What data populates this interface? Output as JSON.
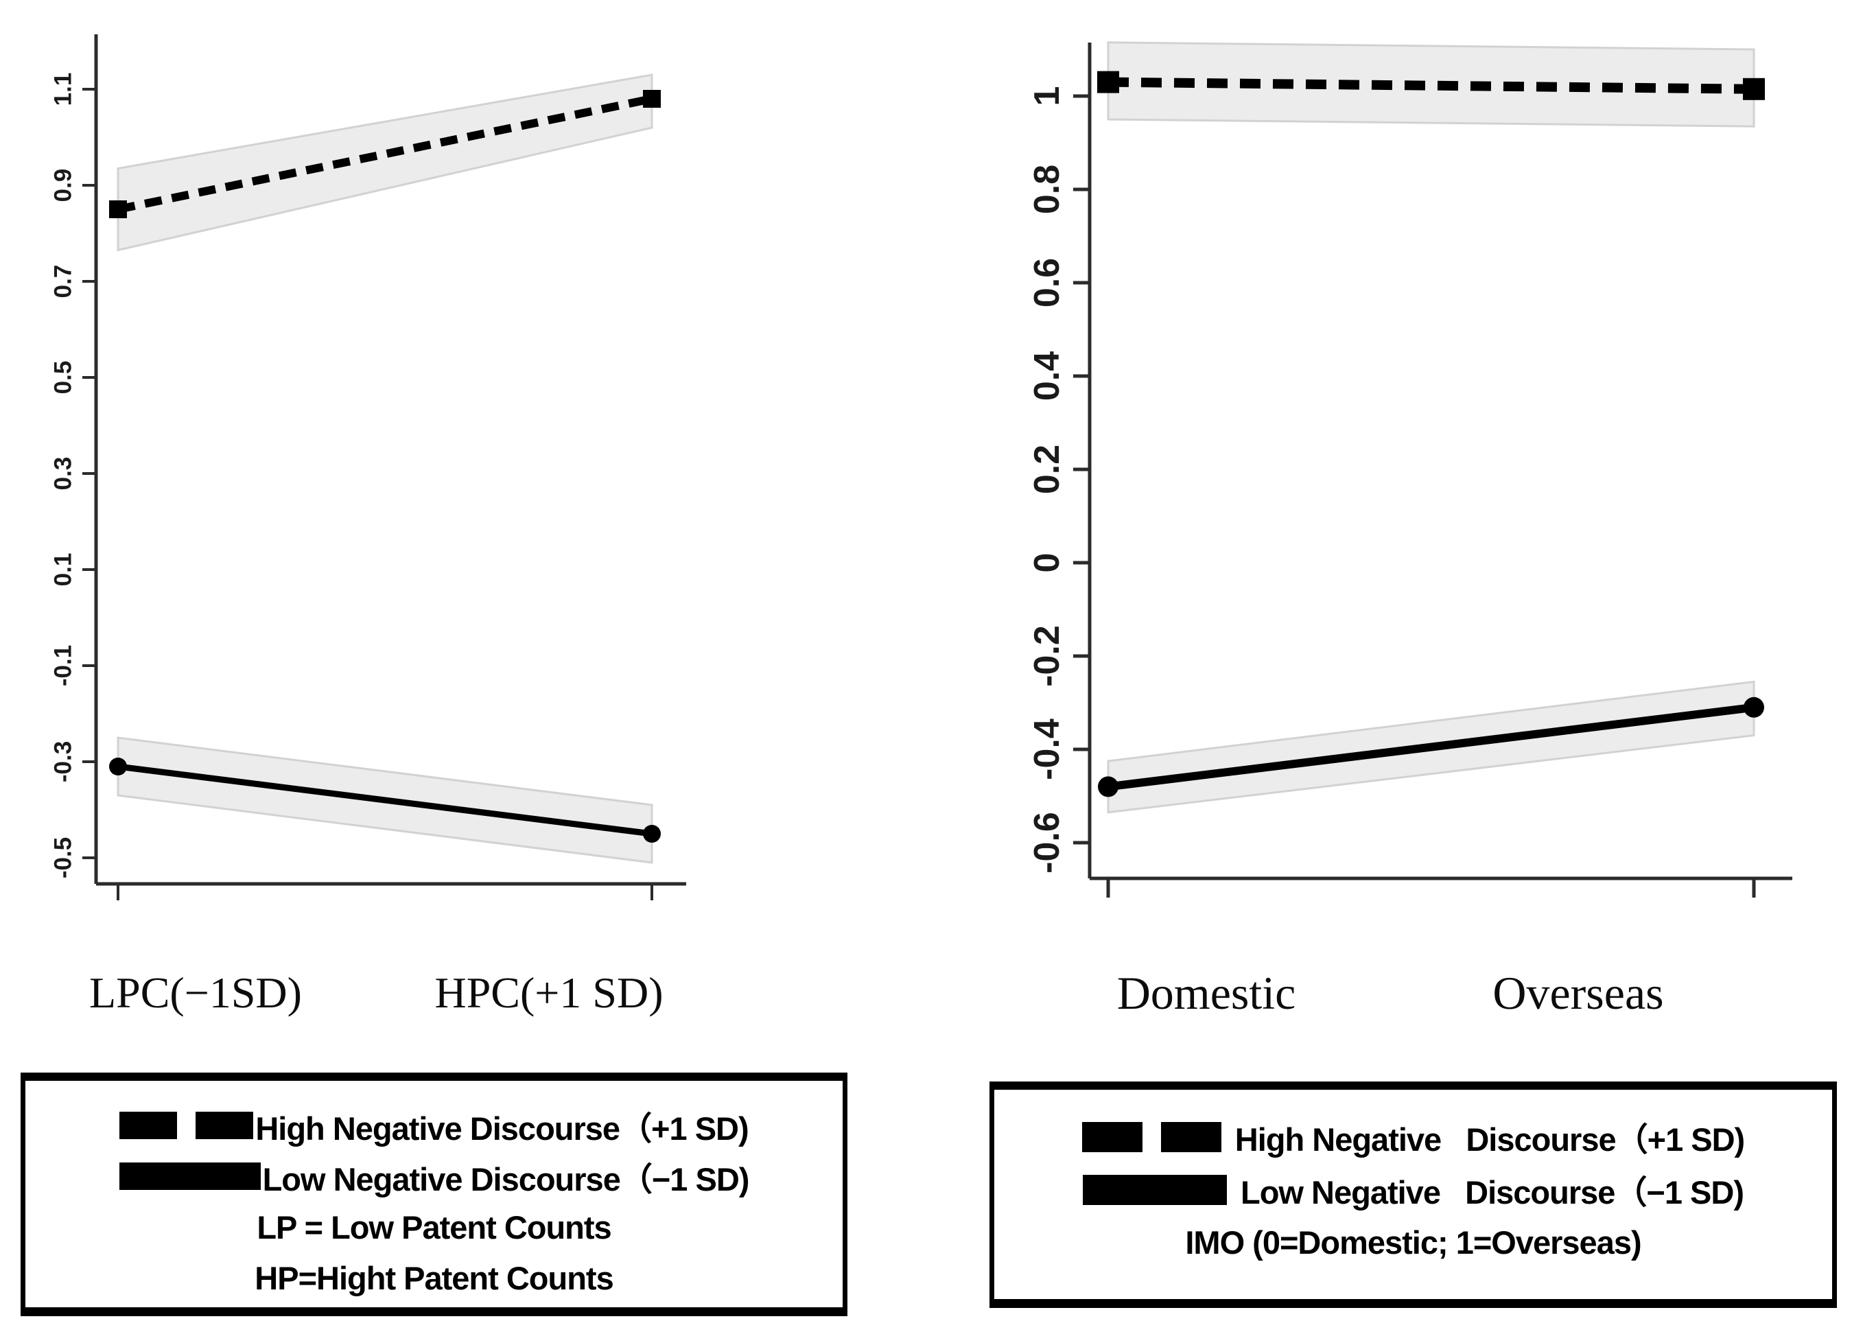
{
  "figure": {
    "background": "#ffffff",
    "description": "Two interaction plots with 95% confidence bands"
  },
  "colors": {
    "line": "#000000",
    "band_fill": "#ececec",
    "band_edge": "#d2d2d2",
    "axis": "#2b2b2b",
    "text": "#1a1a1a"
  },
  "chart_data": [
    {
      "id": "patent-counts-interaction",
      "type": "line",
      "categories": [
        "LPC(−1SD)",
        "HPC(+1 SD)"
      ],
      "yticks": [
        1.1,
        0.9,
        0.7,
        0.5,
        0.3,
        0.1,
        -0.1,
        -0.3,
        -0.5
      ],
      "ytick_labels": [
        "1.1",
        "0.9",
        "0.7",
        "0.5",
        "0.3",
        "0.1",
        "-0.1",
        "-0.3",
        "-0.5"
      ],
      "ylim": [
        -0.56,
        1.23
      ],
      "grid": false,
      "series": [
        {
          "name": "High Negative Discourse（+1 SD)",
          "style": "dashed",
          "marker": "square",
          "values": [
            0.85,
            1.08
          ],
          "ci_low": [
            0.765,
            1.02
          ],
          "ci_high": [
            0.935,
            1.13
          ]
        },
        {
          "name": "Low Negative Discourse（−1 SD)",
          "style": "solid",
          "marker": "circle",
          "values": [
            -0.31,
            -0.45
          ],
          "ci_low": [
            -0.37,
            -0.51
          ],
          "ci_high": [
            -0.25,
            -0.39
          ]
        }
      ],
      "legend": {
        "position": "below",
        "entries": [
          {
            "swatch": "dashed",
            "label": "High Negative Discourse（+1 SD)"
          },
          {
            "swatch": "solid",
            "label": "Low Negative Discourse（−1 SD)"
          }
        ],
        "notes": [
          "LP = Low Patent Counts",
          "HP=Hight Patent Counts"
        ]
      }
    },
    {
      "id": "imo-interaction",
      "type": "line",
      "categories": [
        "Domestic",
        "Overseas"
      ],
      "yticks": [
        1.0,
        0.8,
        0.6,
        0.4,
        0.2,
        0.0,
        -0.2,
        -0.4,
        -0.6
      ],
      "ytick_labels": [
        "1",
        "0.8",
        "0.6",
        "0.4",
        "0.2",
        "0",
        "-0.2",
        "-0.4",
        "-0.6"
      ],
      "ylim": [
        -0.68,
        1.12
      ],
      "grid": false,
      "series": [
        {
          "name": "High Negative   Discourse（+1 SD)",
          "style": "dashed",
          "marker": "square",
          "values": [
            1.03,
            1.015
          ],
          "ci_low": [
            0.95,
            0.935
          ],
          "ci_high": [
            1.115,
            1.1
          ]
        },
        {
          "name": "Low Negative   Discourse（−1 SD)",
          "style": "solid",
          "marker": "circle",
          "values": [
            -0.48,
            -0.31
          ],
          "ci_low": [
            -0.535,
            -0.37
          ],
          "ci_high": [
            -0.425,
            -0.255
          ]
        }
      ],
      "legend": {
        "position": "below",
        "entries": [
          {
            "swatch": "dashed",
            "label": "High Negative   Discourse（+1 SD)"
          },
          {
            "swatch": "solid",
            "label": "Low Negative   Discourse（−1 SD)"
          }
        ],
        "notes": [
          "IMO (0=Domestic; 1=Overseas)"
        ]
      }
    }
  ]
}
